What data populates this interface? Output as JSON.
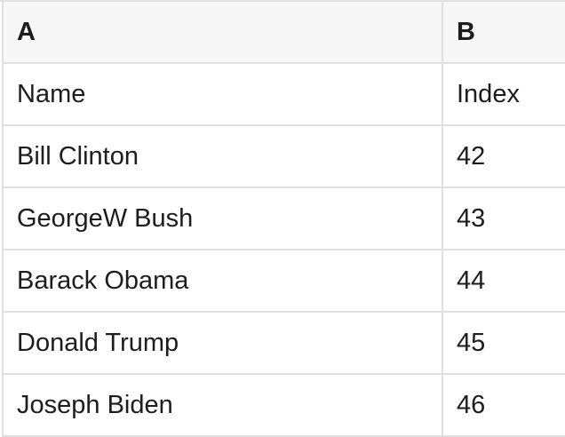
{
  "table": {
    "column_letters": {
      "a": "A",
      "b": "B"
    },
    "rows": [
      {
        "a": "Name",
        "b": "Index"
      },
      {
        "a": "Bill Clinton",
        "b": "42"
      },
      {
        "a": "GeorgeW Bush",
        "b": "43"
      },
      {
        "a": "Barack Obama",
        "b": "44"
      },
      {
        "a": "Donald Trump",
        "b": "45"
      },
      {
        "a": "Joseph Biden",
        "b": "46"
      }
    ]
  },
  "colors": {
    "header_background": "#f7f7f7",
    "border": "#e0e0e0",
    "text": "#1d1d1f"
  }
}
